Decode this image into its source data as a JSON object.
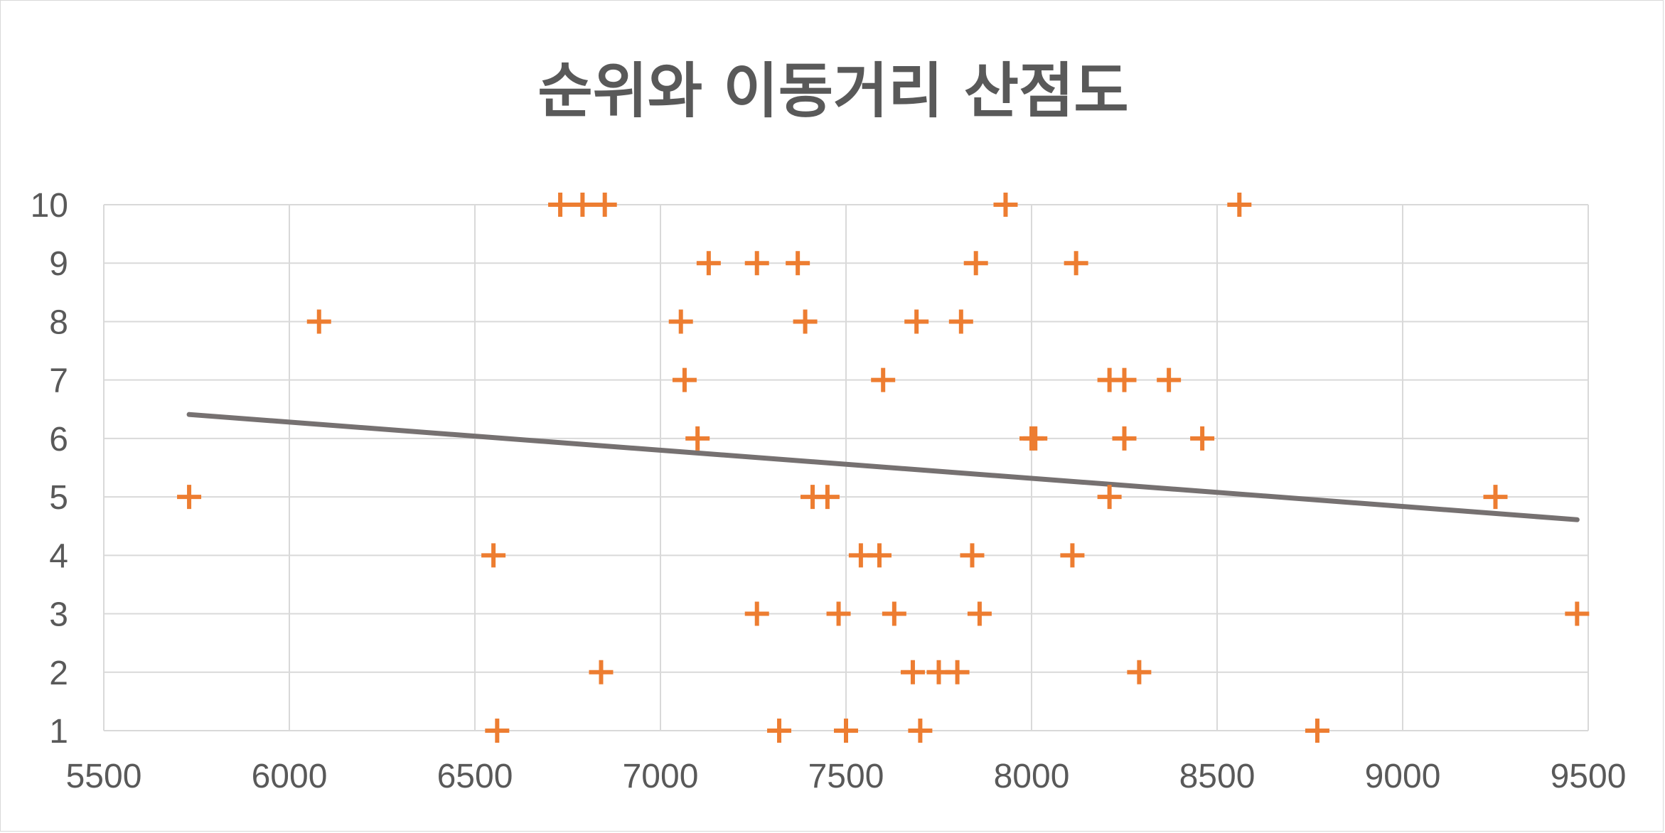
{
  "chart_data": {
    "type": "scatter",
    "title": "순위와 이동거리 산점도",
    "xlabel": "",
    "ylabel": "",
    "xlim": [
      5500,
      9500
    ],
    "ylim": [
      1,
      10
    ],
    "x_ticks": [
      5500,
      6000,
      6500,
      7000,
      7500,
      8000,
      8500,
      9000,
      9500
    ],
    "y_ticks": [
      1,
      2,
      3,
      4,
      5,
      6,
      7,
      8,
      9,
      10
    ],
    "grid": true,
    "legend": "none",
    "marker": "plus",
    "colors": {
      "points": "#ED7D31",
      "trendline": "#767171",
      "grid": "#d9d9d9",
      "text": "#595959"
    },
    "series": [
      {
        "points": [
          [
            6730,
            10
          ],
          [
            6790,
            10
          ],
          [
            6850,
            10
          ],
          [
            7930,
            10
          ],
          [
            8560,
            10
          ],
          [
            7130,
            9
          ],
          [
            7260,
            9
          ],
          [
            7370,
            9
          ],
          [
            7850,
            9
          ],
          [
            8120,
            9
          ],
          [
            6080,
            8
          ],
          [
            7055,
            8
          ],
          [
            7390,
            8
          ],
          [
            7690,
            8
          ],
          [
            7810,
            8
          ],
          [
            7065,
            7
          ],
          [
            7600,
            7
          ],
          [
            8210,
            7
          ],
          [
            8250,
            7
          ],
          [
            8370,
            7
          ],
          [
            7100,
            6
          ],
          [
            8000,
            6
          ],
          [
            8010,
            6
          ],
          [
            8250,
            6
          ],
          [
            8460,
            6
          ],
          [
            5730,
            5
          ],
          [
            7410,
            5
          ],
          [
            7450,
            5
          ],
          [
            8210,
            5
          ],
          [
            9250,
            5
          ],
          [
            6550,
            4
          ],
          [
            7540,
            4
          ],
          [
            7590,
            4
          ],
          [
            7840,
            4
          ],
          [
            8110,
            4
          ],
          [
            7260,
            3
          ],
          [
            7480,
            3
          ],
          [
            7630,
            3
          ],
          [
            7860,
            3
          ],
          [
            9470,
            3
          ],
          [
            6840,
            2
          ],
          [
            7680,
            2
          ],
          [
            7750,
            2
          ],
          [
            7800,
            2
          ],
          [
            8290,
            2
          ],
          [
            6560,
            1
          ],
          [
            7320,
            1
          ],
          [
            7500,
            1
          ],
          [
            7700,
            1
          ],
          [
            8770,
            1
          ]
        ]
      }
    ],
    "trendline": {
      "type": "linear",
      "x_start": 5730,
      "y_start": 6.41,
      "x_end": 9470,
      "y_end": 4.61
    }
  }
}
